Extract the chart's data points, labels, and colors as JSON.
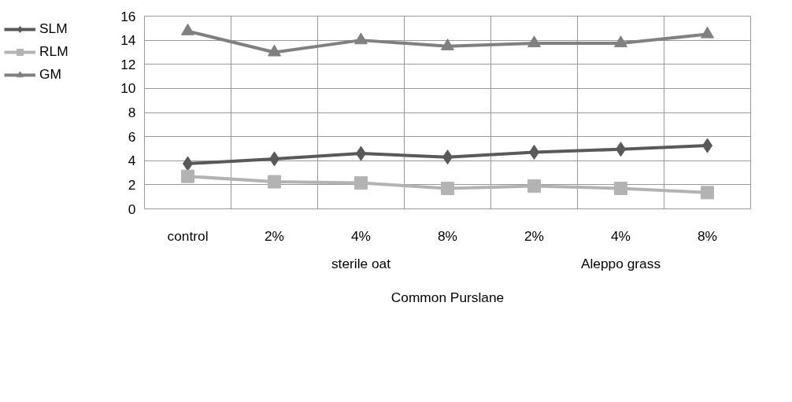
{
  "chart_data": {
    "type": "line",
    "categories": [
      "control",
      "2%",
      "4%",
      "8%",
      "2%",
      "4%",
      "8%"
    ],
    "series": [
      {
        "name": "SLM",
        "color": "#595959",
        "marker": "diamond",
        "values": [
          3.75,
          4.15,
          4.6,
          4.3,
          4.7,
          4.95,
          5.25
        ]
      },
      {
        "name": "RLM",
        "color": "#b3b3b3",
        "marker": "square",
        "values": [
          2.7,
          2.25,
          2.15,
          1.7,
          1.9,
          1.7,
          1.35
        ]
      },
      {
        "name": "GM",
        "color": "#808080",
        "marker": "triangle",
        "values": [
          14.75,
          13.0,
          14.0,
          13.5,
          13.75,
          13.75,
          14.5
        ]
      }
    ],
    "ylim": [
      0,
      16
    ],
    "yticks": [
      0,
      2,
      4,
      6,
      8,
      10,
      12,
      14,
      16
    ],
    "grid": true,
    "legend": "left",
    "line_style": "solid",
    "xlabel": "Common Purslane",
    "annotations": [
      "sterile oat",
      "Aleppo grass"
    ]
  }
}
